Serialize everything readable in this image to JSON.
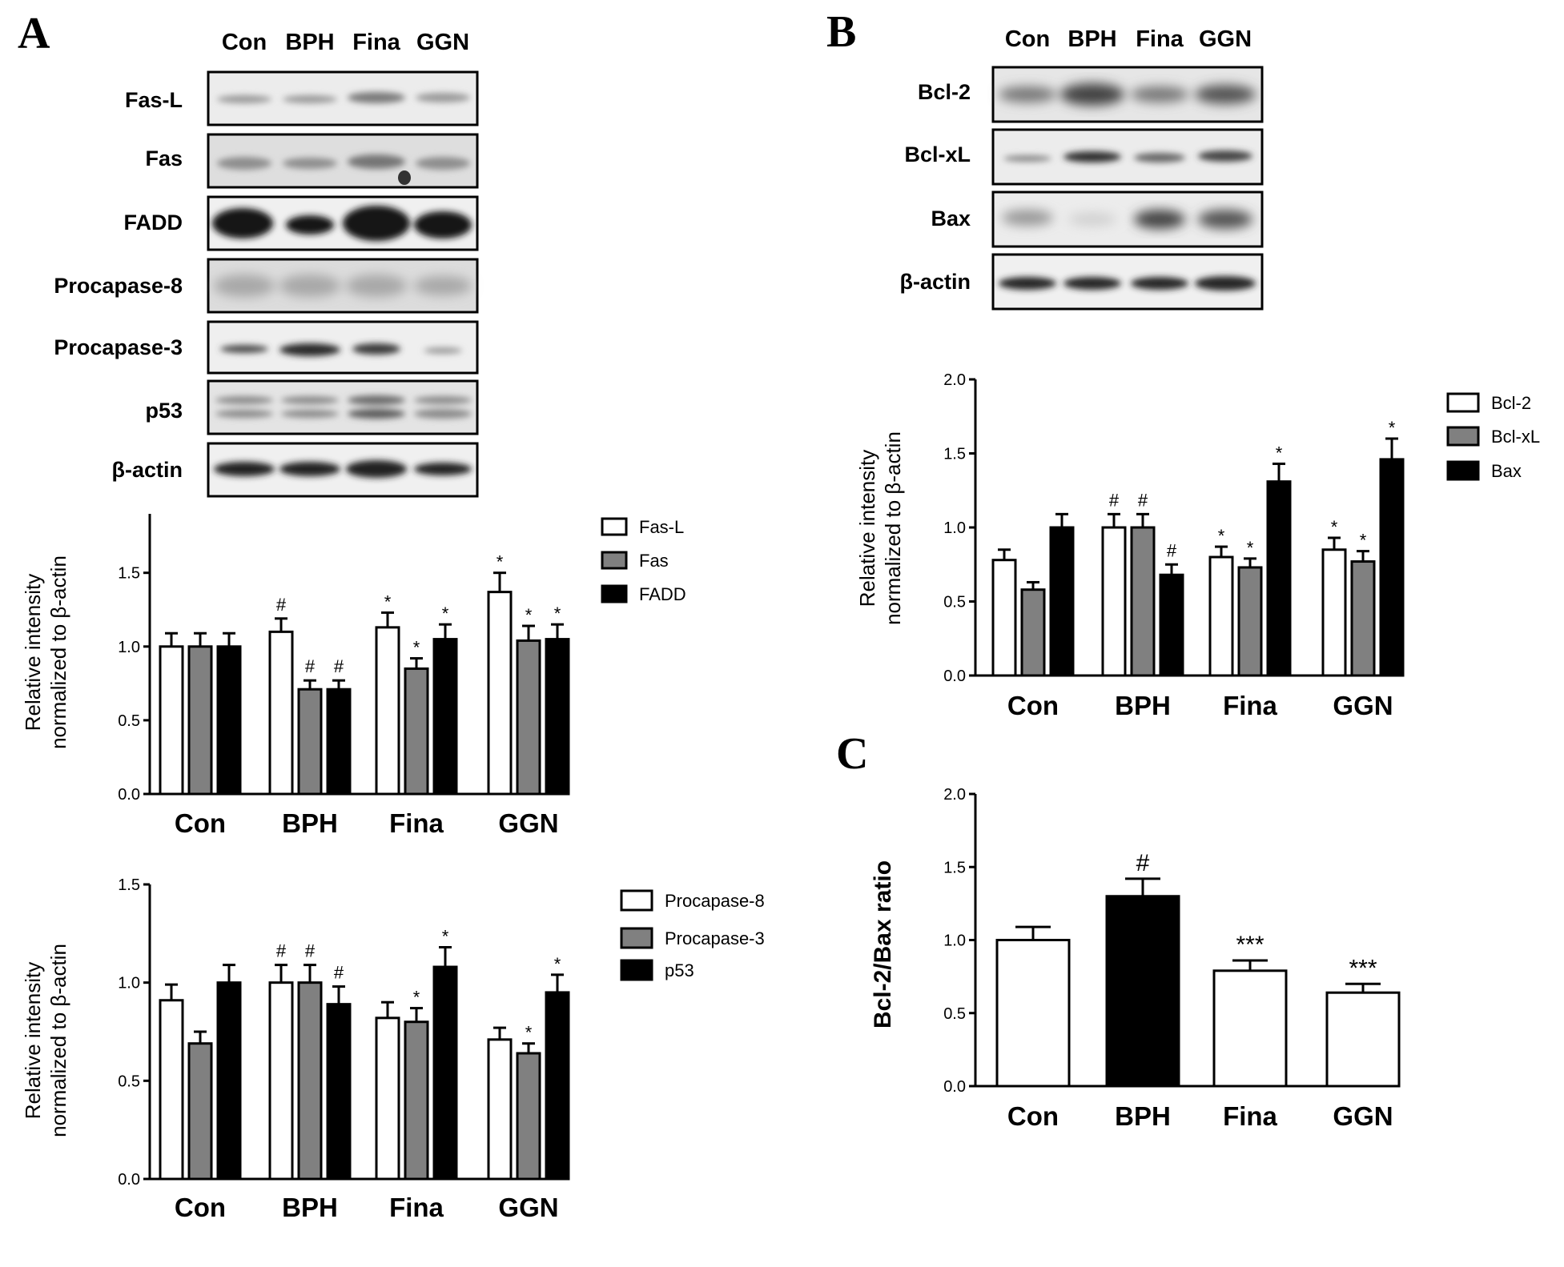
{
  "panels": {
    "a": "A",
    "b": "B",
    "c": "C"
  },
  "blot_a": {
    "lanes": [
      "Con",
      "BPH",
      "Fina",
      "GGN"
    ],
    "rows": [
      "Fas-L",
      "Fas",
      "FADD",
      "Procapase-8",
      "Procapase-3",
      "p53",
      "β-actin"
    ]
  },
  "blot_b": {
    "lanes": [
      "Con",
      "BPH",
      "Fina",
      "GGN"
    ],
    "rows": [
      "Bcl-2",
      "Bcl-xL",
      "Bax",
      "β-actin"
    ]
  },
  "chart_data": [
    {
      "id": "A1",
      "type": "bar",
      "ylabel": [
        "Relative intensity",
        "normalized to β-actin"
      ],
      "ylim": [
        0,
        1.9
      ],
      "yticks": [
        "0.0",
        "0.5",
        "1.0",
        "1.5"
      ],
      "categories": [
        "Con",
        "BPH",
        "Fina",
        "GGN"
      ],
      "legend_position": "top-right",
      "series": [
        {
          "name": "Fas-L",
          "color": "#ffffff",
          "values": [
            1.0,
            1.1,
            1.13,
            1.37
          ],
          "errors": [
            0.09,
            0.09,
            0.1,
            0.13
          ],
          "marks": [
            "",
            "#",
            "*",
            "*"
          ]
        },
        {
          "name": "Fas",
          "color": "#808080",
          "values": [
            1.0,
            0.71,
            0.85,
            1.04
          ],
          "errors": [
            0.09,
            0.06,
            0.07,
            0.1
          ],
          "marks": [
            "",
            "#",
            "*",
            "*"
          ]
        },
        {
          "name": "FADD",
          "color": "#000000",
          "values": [
            1.0,
            0.71,
            1.05,
            1.05
          ],
          "errors": [
            0.09,
            0.06,
            0.1,
            0.1
          ],
          "marks": [
            "",
            "#",
            "*",
            "*"
          ]
        }
      ]
    },
    {
      "id": "A2",
      "type": "bar",
      "ylabel": [
        "Relative intensity",
        "normalized to β-actin"
      ],
      "ylim": [
        0,
        1.5
      ],
      "yticks": [
        "0.0",
        "0.5",
        "1.0",
        "1.5"
      ],
      "categories": [
        "Con",
        "BPH",
        "Fina",
        "GGN"
      ],
      "legend_position": "top-right",
      "series": [
        {
          "name": "Procapase-8",
          "color": "#ffffff",
          "values": [
            0.91,
            1.0,
            0.82,
            0.71
          ],
          "errors": [
            0.08,
            0.09,
            0.08,
            0.06
          ],
          "marks": [
            "",
            "#",
            "",
            ""
          ]
        },
        {
          "name": "Procapase-3",
          "color": "#808080",
          "values": [
            0.69,
            1.0,
            0.8,
            0.64
          ],
          "errors": [
            0.06,
            0.09,
            0.07,
            0.05
          ],
          "marks": [
            "",
            "#",
            "*",
            "*"
          ]
        },
        {
          "name": "p53",
          "color": "#000000",
          "values": [
            1.0,
            0.89,
            1.08,
            0.95
          ],
          "errors": [
            0.09,
            0.09,
            0.1,
            0.09
          ],
          "marks": [
            "",
            "#",
            "*",
            "*"
          ]
        }
      ]
    },
    {
      "id": "B",
      "type": "bar",
      "ylabel": [
        "Relative intensity",
        "normalized to β-actin"
      ],
      "ylim": [
        0,
        2.0
      ],
      "yticks": [
        "0.0",
        "0.5",
        "1.0",
        "1.5",
        "2.0"
      ],
      "categories": [
        "Con",
        "BPH",
        "Fina",
        "GGN"
      ],
      "legend_position": "top-right",
      "series": [
        {
          "name": "Bcl-2",
          "color": "#ffffff",
          "values": [
            0.78,
            1.0,
            0.8,
            0.85
          ],
          "errors": [
            0.07,
            0.09,
            0.07,
            0.08
          ],
          "marks": [
            "",
            "#",
            "*",
            "*"
          ]
        },
        {
          "name": "Bcl-xL",
          "color": "#808080",
          "values": [
            0.58,
            1.0,
            0.73,
            0.77
          ],
          "errors": [
            0.05,
            0.09,
            0.06,
            0.07
          ],
          "marks": [
            "",
            "#",
            "*",
            "*"
          ]
        },
        {
          "name": "Bax",
          "color": "#000000",
          "values": [
            1.0,
            0.68,
            1.31,
            1.46
          ],
          "errors": [
            0.09,
            0.07,
            0.12,
            0.14
          ],
          "marks": [
            "",
            "#",
            "*",
            "*"
          ]
        }
      ]
    },
    {
      "id": "C",
      "type": "bar",
      "ylabel": [
        "Bcl-2/Bax ratio"
      ],
      "ylim": [
        0,
        2.0
      ],
      "yticks": [
        "0.0",
        "0.5",
        "1.0",
        "1.5",
        "2.0"
      ],
      "categories": [
        "Con",
        "BPH",
        "Fina",
        "GGN"
      ],
      "values": [
        1.0,
        1.3,
        0.79,
        0.64
      ],
      "errors": [
        0.09,
        0.12,
        0.07,
        0.06
      ],
      "colors": [
        "#ffffff",
        "#000000",
        "#ffffff",
        "#ffffff"
      ],
      "marks": [
        "",
        "#",
        "***",
        "***"
      ]
    }
  ]
}
